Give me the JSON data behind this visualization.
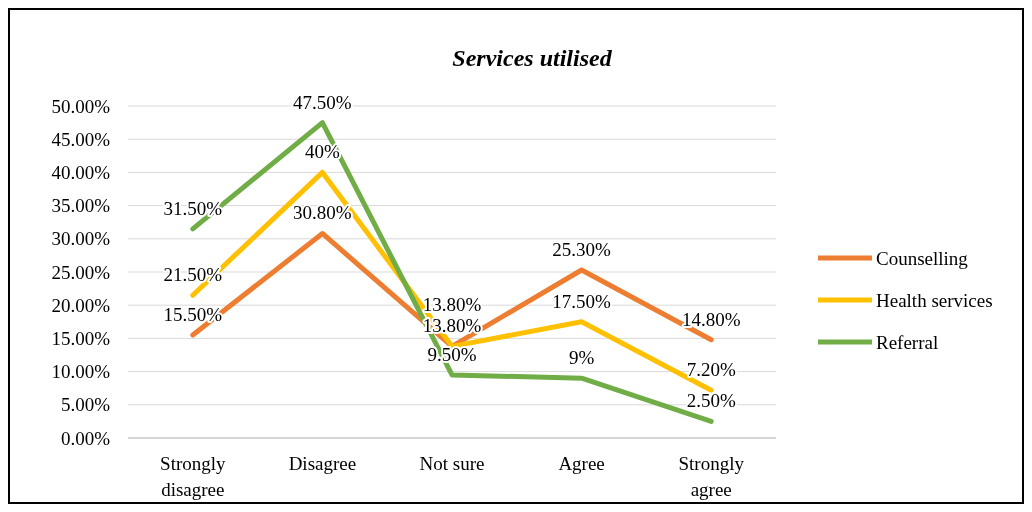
{
  "chart_data": {
    "type": "line",
    "title": "Services utilised",
    "categories": [
      "Strongly disagree",
      "Disagree",
      "Not sure",
      "Agree",
      "Strongly agree"
    ],
    "series": [
      {
        "name": "Counselling",
        "color": "#ed7d31",
        "values": [
          15.5,
          30.8,
          13.8,
          25.3,
          14.8
        ],
        "value_labels": [
          "15.50%",
          "30.80%",
          "13.80%",
          "25.30%",
          "14.80%"
        ]
      },
      {
        "name": "Health services",
        "color": "#ffc000",
        "values": [
          21.5,
          40,
          13.8,
          17.5,
          7.2
        ],
        "value_labels": [
          "21.50%",
          "40%",
          "13.80%",
          "17.50%",
          "7.20%"
        ]
      },
      {
        "name": "Referral",
        "color": "#70ad47",
        "values": [
          31.5,
          47.5,
          9.5,
          9,
          2.5
        ],
        "value_labels": [
          "31.50%",
          "47.50%",
          "9.50%",
          "9%",
          "2.50%"
        ]
      }
    ],
    "ylim": [
      0,
      50
    ],
    "yticks": [
      {
        "value": 0,
        "label": "0.00%"
      },
      {
        "value": 5,
        "label": "5.00%"
      },
      {
        "value": 10,
        "label": "10.00%"
      },
      {
        "value": 15,
        "label": "15.00%"
      },
      {
        "value": 20,
        "label": "20.00%"
      },
      {
        "value": 25,
        "label": "25.00%"
      },
      {
        "value": 30,
        "label": "30.00%"
      },
      {
        "value": 35,
        "label": "35.00%"
      },
      {
        "value": 40,
        "label": "40.00%"
      },
      {
        "value": 45,
        "label": "45.00%"
      },
      {
        "value": 50,
        "label": "50.00%"
      }
    ],
    "grid": "y",
    "legend": "right",
    "marker": "none",
    "line_style": "solid"
  }
}
